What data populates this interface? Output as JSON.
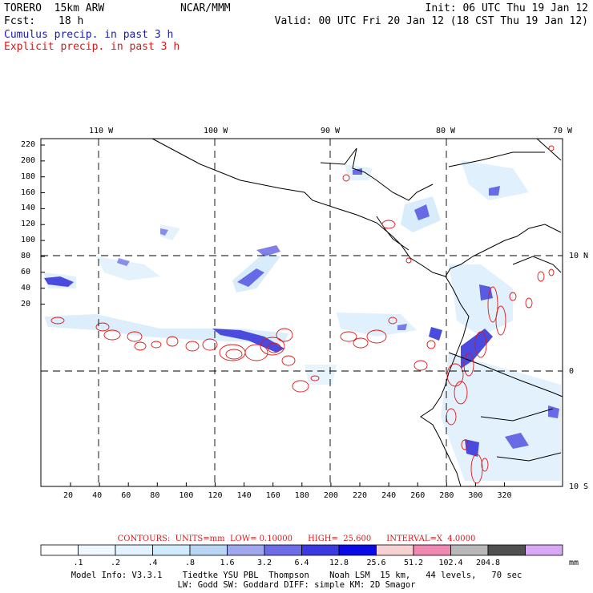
{
  "header": {
    "model": "TORERO  15km ARW",
    "org": "NCAR/MMM",
    "init": "Init: 06 UTC Thu 19 Jan 12",
    "fcst_label": "Fcst:",
    "fcst_value": "18 h",
    "valid": "Valid: 00 UTC Fri 20 Jan 12 (18 CST Thu 19 Jan 12)",
    "field1": "Cumulus precip. in past 3 h",
    "field2": "Explicit precip. in past 3 h"
  },
  "colors": {
    "field1_color": "#1c1ca8",
    "field2_color": "#d81818"
  },
  "map": {
    "top_lon_labels": [
      "110 W",
      "100 W",
      "90 W",
      "80 W",
      "70 W"
    ],
    "right_lat_labels": [
      "10 N",
      "0",
      "10 S"
    ],
    "left_y_ticks": [
      "220",
      "200",
      "180",
      "160",
      "140",
      "120",
      "100",
      "80",
      "60",
      "40",
      "20"
    ],
    "bottom_x_ticks": [
      "20",
      "40",
      "60",
      "80",
      "100",
      "120",
      "140",
      "160",
      "180",
      "200",
      "220",
      "240",
      "260",
      "280",
      "300",
      "320"
    ]
  },
  "colorbar": {
    "values": [
      ".1",
      ".2",
      ".4",
      ".8",
      "1.6",
      "3.2",
      "6.4",
      "12.8",
      "25.6",
      "51.2",
      "102.4",
      "204.8"
    ],
    "unit": "mm",
    "fill_colors": [
      "#ffffff",
      "#f0f8ff",
      "#e2f2ff",
      "#d0ebfb",
      "#b8d6f4",
      "#a0a8ee",
      "#6d6de8",
      "#3a3ae0",
      "#0a0ae6",
      "#f8d2d2",
      "#f088b4",
      "#b8b8b8",
      "#505050",
      "#d8a8f4"
    ]
  },
  "contours": {
    "text": "CONTOURS:  UNITS=mm  LOW= 0.10000      HIGH=  25.600      INTERVAL=X  4.0000"
  },
  "footer": {
    "line1": "Model Info: V3.3.1    Tiedtke YSU PBL  Thompson    Noah LSM  15 km,   44 levels,   70 sec",
    "line2": "LW: Godd SW: Goddard DIFF: simple KM: 2D Smagor"
  }
}
